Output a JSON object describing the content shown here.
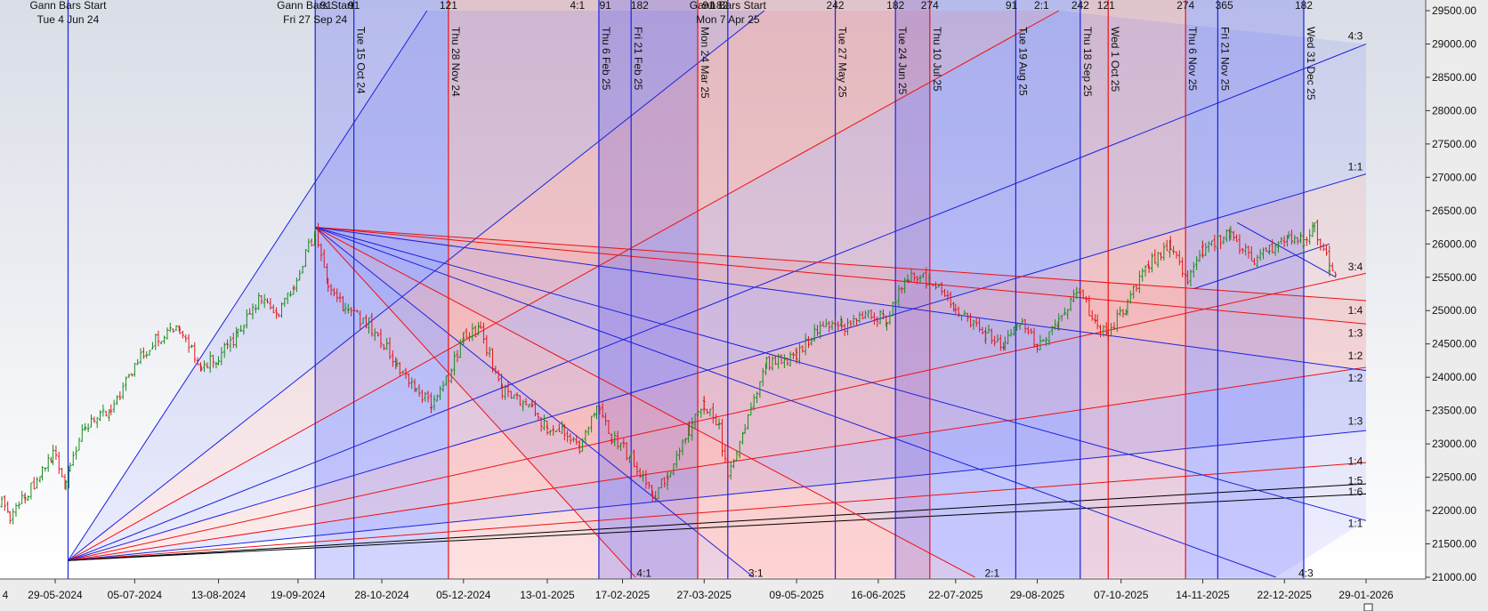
{
  "chart_data": {
    "type": "ohlc",
    "title": "",
    "colors": {
      "up": "#1a8a1a",
      "down": "#e0161e",
      "blue_line": "#1a22dd",
      "red_line": "#ee1111",
      "black_line": "#000000",
      "blue_band": "#3d45ff",
      "red_band": "#ff4b4b",
      "plot_bg_top": "#dcdfe8",
      "plot_bg_bottom": "#ffffff",
      "axis_bg": "#e8e8e8"
    },
    "y_axis": {
      "min": 21000,
      "max": 29500,
      "ticks": [
        "21000.00",
        "21500.00",
        "22000.00",
        "22500.00",
        "23000.00",
        "23500.00",
        "24000.00",
        "24500.00",
        "25000.00",
        "25500.00",
        "26000.00",
        "26500.00",
        "27000.00",
        "27500.00",
        "28000.00",
        "28500.00",
        "29000.00",
        "29500.00"
      ]
    },
    "x_axis": {
      "ticks": [
        {
          "date": "2024-04-22",
          "label": "4"
        },
        {
          "date": "2024-05-29",
          "label": "29-05-2024"
        },
        {
          "date": "2024-07-05",
          "label": "05-07-2024"
        },
        {
          "date": "2024-08-13",
          "label": "13-08-2024"
        },
        {
          "date": "2024-09-19",
          "label": "19-09-2024"
        },
        {
          "date": "2024-10-28",
          "label": "28-10-2024"
        },
        {
          "date": "2024-12-05",
          "label": "05-12-2024"
        },
        {
          "date": "2025-01-13",
          "label": "13-01-2025"
        },
        {
          "date": "2025-02-17",
          "label": "17-02-2025"
        },
        {
          "date": "2025-03-27",
          "label": "27-03-2025"
        },
        {
          "date": "2025-05-09",
          "label": "09-05-2025"
        },
        {
          "date": "2025-06-16",
          "label": "16-06-2025"
        },
        {
          "date": "2025-07-22",
          "label": "22-07-2025"
        },
        {
          "date": "2025-08-29",
          "label": "29-08-2025"
        },
        {
          "date": "2025-10-07",
          "label": "07-10-2025"
        },
        {
          "date": "2025-11-14",
          "label": "14-11-2025"
        },
        {
          "date": "2025-12-22",
          "label": "22-12-2025"
        },
        {
          "date": "2026-01-29",
          "label": "29-01-2026"
        }
      ]
    },
    "gann_starts": [
      {
        "date": "2024-06-04",
        "label": "Gann Bars Start",
        "sublabel": "Tue 4 Jun 24"
      },
      {
        "date": "2024-09-27",
        "label": "Gann Bars Start",
        "sublabel": "Fri 27 Sep 24"
      },
      {
        "date": "2025-04-07",
        "label": "Gann Bars Start",
        "sublabel": "Mon 7 Apr 25"
      }
    ],
    "vertical_lines": [
      {
        "date": "2024-06-04",
        "color": "blue",
        "label": ""
      },
      {
        "date": "2024-09-27",
        "color": "blue",
        "label": ""
      },
      {
        "date": "2024-10-15",
        "color": "blue",
        "label": "Tue 15 Oct 24"
      },
      {
        "date": "2024-11-28",
        "color": "red",
        "label": "Thu 28 Nov 24"
      },
      {
        "date": "2025-02-06",
        "color": "blue",
        "label": "Thu 6 Feb 25"
      },
      {
        "date": "2025-02-21",
        "color": "blue",
        "label": "Fri 21 Feb 25"
      },
      {
        "date": "2025-03-24",
        "color": "red",
        "label": "Mon 24 Mar 25"
      },
      {
        "date": "2025-04-07",
        "color": "blue",
        "label": ""
      },
      {
        "date": "2025-05-27",
        "color": "blue",
        "label": "Tue 27 May 25"
      },
      {
        "date": "2025-06-24",
        "color": "blue",
        "label": "Tue 24 Jun 25"
      },
      {
        "date": "2025-07-10",
        "color": "red",
        "label": "Thu 10 Jul 25"
      },
      {
        "date": "2025-08-19",
        "color": "blue",
        "label": "Tue 19 Aug 25"
      },
      {
        "date": "2025-09-18",
        "color": "blue",
        "label": "Thu 18 Sep 25"
      },
      {
        "date": "2025-10-01",
        "color": "red",
        "label": "Wed 1 Oct 25"
      },
      {
        "date": "2025-11-06",
        "color": "red",
        "label": "Thu 6 Nov 25"
      },
      {
        "date": "2025-11-21",
        "color": "blue",
        "label": "Fri 21 Nov 25"
      },
      {
        "date": "2025-12-31",
        "color": "blue",
        "label": "Wed 31 Dec 25"
      }
    ],
    "bands": [
      {
        "from": "2024-09-27",
        "to": "2024-11-28",
        "color": "blue"
      },
      {
        "from": "2024-11-28",
        "to": "2025-03-24",
        "color": "red"
      },
      {
        "from": "2025-02-06",
        "to": "2025-03-24",
        "color": "blue"
      },
      {
        "from": "2025-03-24",
        "to": "2025-05-27",
        "color": "red"
      },
      {
        "from": "2025-05-27",
        "to": "2025-07-10",
        "color": "red"
      },
      {
        "from": "2025-06-24",
        "to": "2025-07-10",
        "color": "blue"
      },
      {
        "from": "2025-07-10",
        "to": "2025-08-19",
        "color": "blue"
      },
      {
        "from": "2025-08-19",
        "to": "2025-09-18",
        "color": "blue"
      },
      {
        "from": "2025-09-18",
        "to": "2025-10-01",
        "color": "red"
      },
      {
        "from": "2025-10-01",
        "to": "2025-11-06",
        "color": "red"
      },
      {
        "from": "2025-11-06",
        "to": "2025-12-31",
        "color": "blue"
      }
    ],
    "top_labels": [
      {
        "date": "2024-10-02",
        "text": "91"
      },
      {
        "date": "2024-10-15",
        "text": "91"
      },
      {
        "date": "2024-11-28",
        "text": "121"
      },
      {
        "date": "2025-01-27",
        "text": "4:1"
      },
      {
        "date": "2025-02-09",
        "text": "91"
      },
      {
        "date": "2025-02-25",
        "text": "182"
      },
      {
        "date": "2025-03-29",
        "text": "91"
      },
      {
        "date": "2025-04-03",
        "text": "182"
      },
      {
        "date": "2025-05-27",
        "text": "242"
      },
      {
        "date": "2025-06-24",
        "text": "182"
      },
      {
        "date": "2025-07-10",
        "text": "274"
      },
      {
        "date": "2025-08-17",
        "text": "91"
      },
      {
        "date": "2025-08-31",
        "text": "2:1"
      },
      {
        "date": "2025-09-18",
        "text": "242"
      },
      {
        "date": "2025-09-30",
        "text": "121"
      },
      {
        "date": "2025-11-06",
        "text": "274"
      },
      {
        "date": "2025-11-24",
        "text": "365"
      },
      {
        "date": "2025-12-31",
        "text": "182"
      }
    ],
    "fan_origins": [
      {
        "date": "2024-06-04",
        "price": 21250
      },
      {
        "date": "2024-09-27",
        "price": 26250
      }
    ],
    "fan_lines": [
      {
        "origin": 0,
        "end_date": "2024-11-18",
        "end_price": 29500,
        "color": "blue"
      },
      {
        "origin": 0,
        "end_date": "2025-04-24",
        "end_price": 29500,
        "color": "blue"
      },
      {
        "origin": 0,
        "end_date": "2025-09-08",
        "end_price": 29500,
        "color": "red"
      },
      {
        "origin": 0,
        "end_date": "2026-01-29",
        "end_price": 29000,
        "color": "blue"
      },
      {
        "origin": 0,
        "end_date": "2026-01-29",
        "end_price": 27050,
        "color": "blue"
      },
      {
        "origin": 0,
        "end_date": "2026-01-29",
        "end_price": 25560,
        "color": "red"
      },
      {
        "origin": 0,
        "end_date": "2026-01-29",
        "end_price": 24150,
        "color": "red"
      },
      {
        "origin": 0,
        "end_date": "2026-01-29",
        "end_price": 23200,
        "color": "blue"
      },
      {
        "origin": 0,
        "end_date": "2026-01-29",
        "end_price": 22720,
        "color": "red"
      },
      {
        "origin": 0,
        "end_date": "2026-01-29",
        "end_price": 22400,
        "color": "black"
      },
      {
        "origin": 0,
        "end_date": "2026-01-29",
        "end_price": 22250,
        "color": "black"
      },
      {
        "origin": 1,
        "end_date": "2026-01-29",
        "end_price": 25150,
        "color": "red"
      },
      {
        "origin": 1,
        "end_date": "2026-01-29",
        "end_price": 24800,
        "color": "red"
      },
      {
        "origin": 1,
        "end_date": "2026-01-29",
        "end_price": 24100,
        "color": "blue"
      },
      {
        "origin": 1,
        "end_date": "2026-01-29",
        "end_price": 21850,
        "color": "blue"
      },
      {
        "origin": 1,
        "end_date": "2025-12-18",
        "end_price": 21000,
        "color": "blue"
      },
      {
        "origin": 1,
        "end_date": "2025-07-31",
        "end_price": 21000,
        "color": "red"
      },
      {
        "origin": 1,
        "end_date": "2025-04-19",
        "end_price": 21000,
        "color": "blue"
      },
      {
        "origin": 1,
        "end_date": "2025-02-23",
        "end_price": 21000,
        "color": "red"
      }
    ],
    "trend_lines": [
      {
        "from_date": "2025-11-10",
        "from_price": 25330,
        "to_date": "2026-01-12",
        "to_price": 26000,
        "color": "blue"
      },
      {
        "from_date": "2025-11-30",
        "from_price": 26320,
        "to_date": "2026-01-15",
        "to_price": 25500,
        "color": "blue"
      }
    ],
    "ratio_labels": [
      {
        "date": "2026-01-24",
        "price": 29120,
        "text": "4:3"
      },
      {
        "date": "2026-01-24",
        "price": 27160,
        "text": "1:1"
      },
      {
        "date": "2026-01-24",
        "price": 25660,
        "text": "3:4"
      },
      {
        "date": "2026-01-24",
        "price": 25000,
        "text": "1:4"
      },
      {
        "date": "2026-01-24",
        "price": 24660,
        "text": "1:3"
      },
      {
        "date": "2026-01-24",
        "price": 24320,
        "text": "1:2"
      },
      {
        "date": "2026-01-24",
        "price": 23990,
        "text": "1:2"
      },
      {
        "date": "2026-01-24",
        "price": 23340,
        "text": "1:3"
      },
      {
        "date": "2026-01-24",
        "price": 22740,
        "text": "1:4"
      },
      {
        "date": "2026-01-24",
        "price": 22450,
        "text": "1:5"
      },
      {
        "date": "2026-01-24",
        "price": 22280,
        "text": "1:6"
      },
      {
        "date": "2026-01-24",
        "price": 21810,
        "text": "1:1"
      },
      {
        "date": "2025-02-27",
        "price": 21060,
        "text": "4:1"
      },
      {
        "date": "2025-04-20",
        "price": 21060,
        "text": "3:1"
      },
      {
        "date": "2025-08-08",
        "price": 21060,
        "text": "2:1"
      },
      {
        "date": "2026-01-01",
        "price": 21060,
        "text": "4:3"
      }
    ],
    "price_path": [
      [
        "2024-04-22",
        22500
      ],
      [
        "2024-04-30",
        22300
      ],
      [
        "2024-05-08",
        21900
      ],
      [
        "2024-05-15",
        22200
      ],
      [
        "2024-05-23",
        22600
      ],
      [
        "2024-05-28",
        22850
      ],
      [
        "2024-06-03",
        22400
      ],
      [
        "2024-06-05",
        22650
      ],
      [
        "2024-06-12",
        23250
      ],
      [
        "2024-06-24",
        23500
      ],
      [
        "2024-07-05",
        24200
      ],
      [
        "2024-07-16",
        24600
      ],
      [
        "2024-07-26",
        24700
      ],
      [
        "2024-08-05",
        24150
      ],
      [
        "2024-08-13",
        24300
      ],
      [
        "2024-08-22",
        24650
      ],
      [
        "2024-09-02",
        25200
      ],
      [
        "2024-09-10",
        25000
      ],
      [
        "2024-09-17",
        25400
      ],
      [
        "2024-09-27",
        26200
      ],
      [
        "2024-10-03",
        25400
      ],
      [
        "2024-10-11",
        25000
      ],
      [
        "2024-10-22",
        24800
      ],
      [
        "2024-11-04",
        24200
      ],
      [
        "2024-11-13",
        23800
      ],
      [
        "2024-11-20",
        23600
      ],
      [
        "2024-11-28",
        24000
      ],
      [
        "2024-12-05",
        24600
      ],
      [
        "2024-12-13",
        24700
      ],
      [
        "2024-12-23",
        23800
      ],
      [
        "2025-01-06",
        23500
      ],
      [
        "2025-01-13",
        23250
      ],
      [
        "2025-01-21",
        23200
      ],
      [
        "2025-01-28",
        22900
      ],
      [
        "2025-02-05",
        23600
      ],
      [
        "2025-02-12",
        23100
      ],
      [
        "2025-02-21",
        22800
      ],
      [
        "2025-03-03",
        22200
      ],
      [
        "2025-03-10",
        22500
      ],
      [
        "2025-03-20",
        23200
      ],
      [
        "2025-03-27",
        23600
      ],
      [
        "2025-04-03",
        23250
      ],
      [
        "2025-04-07",
        22450
      ],
      [
        "2025-04-15",
        23300
      ],
      [
        "2025-04-25",
        24200
      ],
      [
        "2025-05-09",
        24300
      ],
      [
        "2025-05-20",
        24800
      ],
      [
        "2025-05-30",
        24750
      ],
      [
        "2025-06-10",
        24950
      ],
      [
        "2025-06-20",
        24900
      ],
      [
        "2025-06-30",
        25500
      ],
      [
        "2025-07-10",
        25450
      ],
      [
        "2025-07-22",
        25000
      ],
      [
        "2025-08-05",
        24650
      ],
      [
        "2025-08-14",
        24500
      ],
      [
        "2025-08-22",
        24900
      ],
      [
        "2025-08-29",
        24450
      ],
      [
        "2025-09-08",
        24800
      ],
      [
        "2025-09-18",
        25350
      ],
      [
        "2025-09-26",
        24700
      ],
      [
        "2025-10-01",
        24700
      ],
      [
        "2025-10-10",
        25100
      ],
      [
        "2025-10-20",
        25700
      ],
      [
        "2025-10-30",
        26000
      ],
      [
        "2025-11-07",
        25400
      ],
      [
        "2025-11-14",
        25900
      ],
      [
        "2025-11-27",
        26150
      ],
      [
        "2025-12-08",
        25700
      ],
      [
        "2025-12-15",
        25900
      ],
      [
        "2025-12-24",
        26100
      ],
      [
        "2025-12-31",
        26050
      ],
      [
        "2026-01-05",
        26250
      ],
      [
        "2026-01-12",
        25650
      ],
      [
        "2026-01-16",
        25550
      ]
    ]
  }
}
